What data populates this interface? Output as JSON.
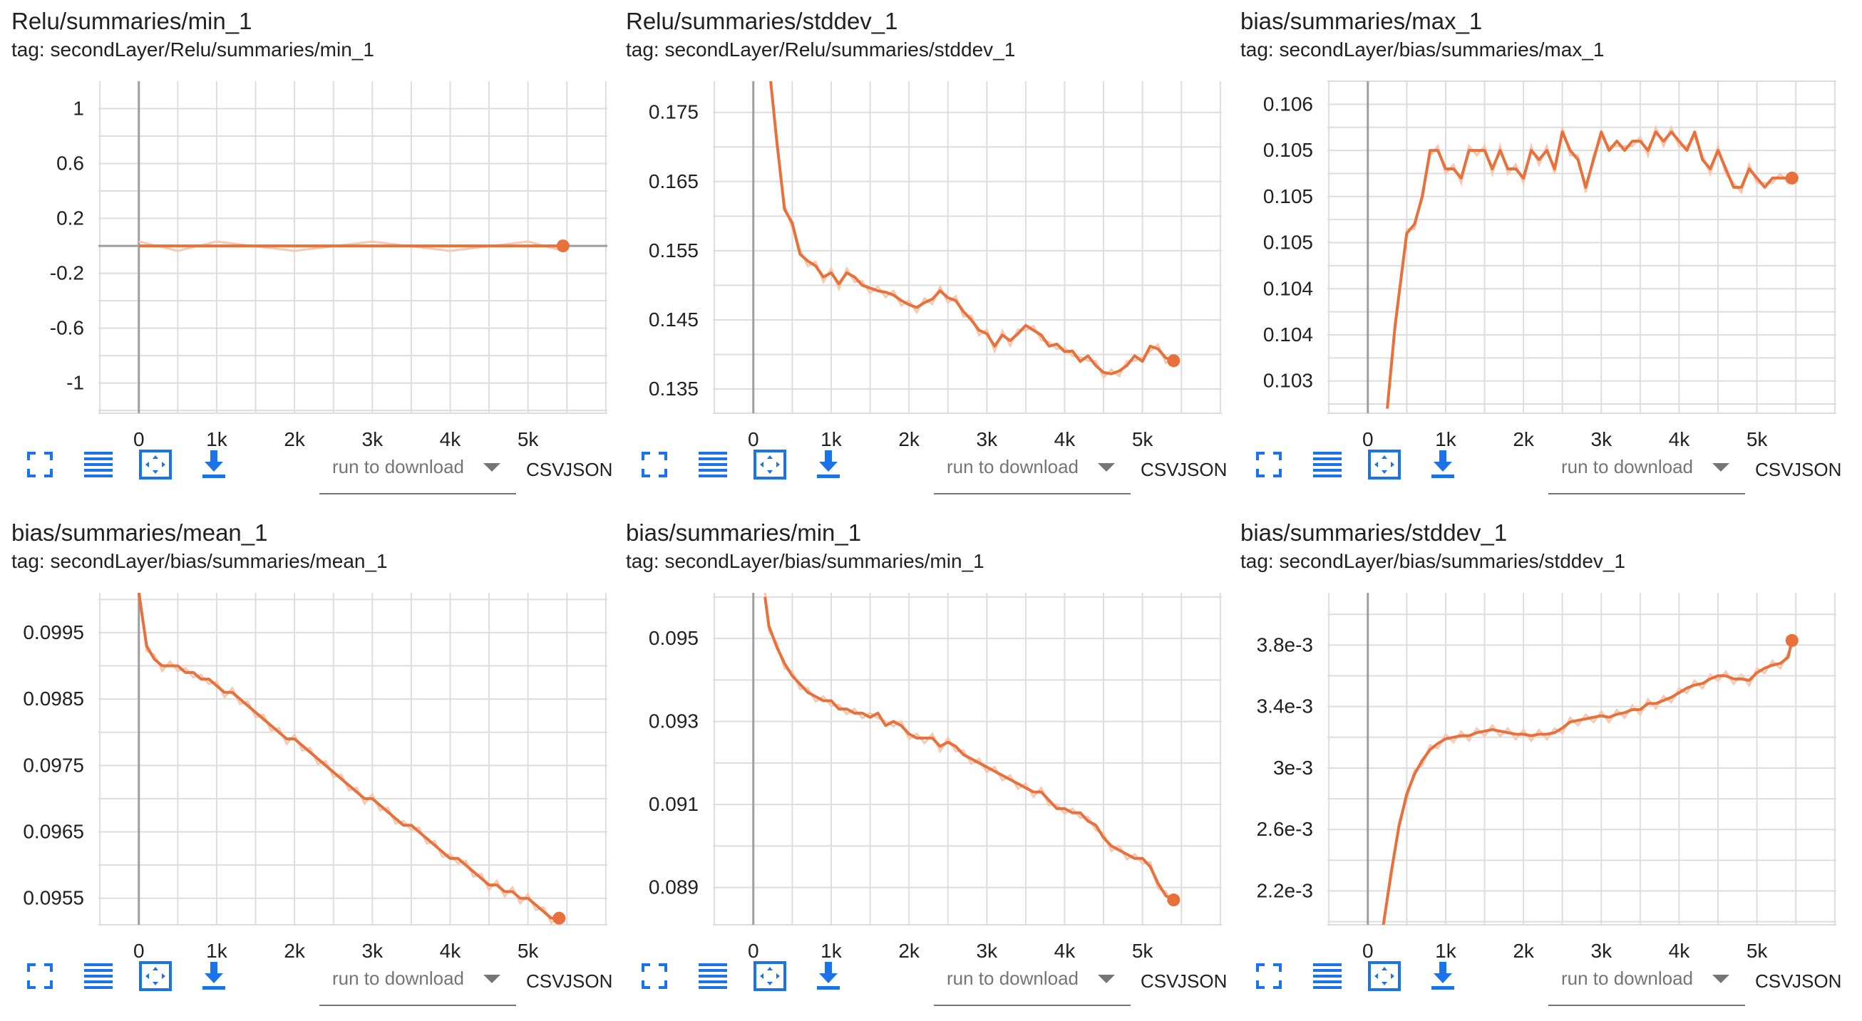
{
  "colors": {
    "accent": "#e8703a",
    "accent_light": "#f7c9b3",
    "grid": "#dddddd",
    "axis": "#9e9e9e",
    "icon_blue": "#1a73e8"
  },
  "toolbar": {
    "run_select_placeholder": "run to download",
    "csv_label": "CSV",
    "json_label": "JSON",
    "icons": [
      "fullscreen-icon",
      "toggle-log-scale-icon",
      "fit-domain-icon",
      "download-icon"
    ]
  },
  "cards": [
    {
      "title": "Relu/summaries/min_1",
      "tag": "tag: secondLayer/Relu/summaries/min_1",
      "chart_data": {
        "type": "line",
        "x_ticks": [
          "0",
          "1k",
          "2k",
          "3k",
          "4k",
          "5k"
        ],
        "x_tick_values": [
          0,
          1000,
          2000,
          3000,
          4000,
          5000
        ],
        "y_ticks": [
          "1",
          "0.6",
          "0.2",
          "-0.2",
          "-0.6",
          "-1"
        ],
        "y_tick_values": [
          1,
          0.6,
          0.2,
          -0.2,
          -0.6,
          -1
        ],
        "xlim": [
          -520,
          6020
        ],
        "ylim": [
          -1.22,
          1.2
        ],
        "grid": true,
        "series": [
          {
            "x": [
              0,
              500,
              1000,
              2000,
              3000,
              4000,
              5000,
              5450
            ],
            "y": [
              0,
              0,
              0,
              0,
              0,
              0,
              0,
              0
            ]
          }
        ]
      }
    },
    {
      "title": "Relu/summaries/stddev_1",
      "tag": "tag: secondLayer/Relu/summaries/stddev_1",
      "chart_data": {
        "type": "line",
        "x_ticks": [
          "0",
          "1k",
          "2k",
          "3k",
          "4k",
          "5k"
        ],
        "x_tick_values": [
          0,
          1000,
          2000,
          3000,
          4000,
          5000
        ],
        "y_ticks": [
          "0.175",
          "0.165",
          "0.155",
          "0.145",
          "0.135"
        ],
        "y_tick_values": [
          0.175,
          0.165,
          0.155,
          0.145,
          0.135
        ],
        "xlim": [
          -520,
          6020
        ],
        "ylim": [
          0.1315,
          0.1795
        ],
        "grid": true,
        "series": [
          {
            "x": [
              200,
              300,
              400,
              500,
              600,
              700,
              800,
              900,
              1000,
              1100,
              1200,
              1300,
              1400,
              1500,
              1600,
              1700,
              1800,
              1900,
              2000,
              2100,
              2200,
              2300,
              2400,
              2500,
              2600,
              2700,
              2800,
              2900,
              3000,
              3100,
              3200,
              3300,
              3400,
              3500,
              3600,
              3700,
              3800,
              3900,
              4000,
              4100,
              4200,
              4300,
              4400,
              4500,
              4600,
              4700,
              4800,
              4900,
              5000,
              5100,
              5200,
              5300,
              5400
            ],
            "y": [
              0.182,
              0.171,
              0.161,
              0.159,
              0.1545,
              0.1535,
              0.1528,
              0.1512,
              0.1518,
              0.1502,
              0.1518,
              0.1512,
              0.15,
              0.1496,
              0.1492,
              0.149,
              0.1486,
              0.1478,
              0.1472,
              0.1468,
              0.1475,
              0.148,
              0.1492,
              0.1482,
              0.1478,
              0.1462,
              0.145,
              0.1435,
              0.143,
              0.1412,
              0.1428,
              0.142,
              0.143,
              0.1442,
              0.1435,
              0.1428,
              0.1412,
              0.1415,
              0.1404,
              0.1405,
              0.139,
              0.1398,
              0.1384,
              0.1374,
              0.1372,
              0.1376,
              0.1384,
              0.1398,
              0.139,
              0.1412,
              0.1408,
              0.1395,
              0.1391
            ]
          }
        ]
      }
    },
    {
      "title": "bias/summaries/max_1",
      "tag": "tag: secondLayer/bias/summaries/max_1",
      "chart_data": {
        "type": "line",
        "x_ticks": [
          "0",
          "1k",
          "2k",
          "3k",
          "4k",
          "5k"
        ],
        "x_tick_values": [
          0,
          1000,
          2000,
          3000,
          4000,
          5000
        ],
        "y_ticks": [
          "0.106",
          "0.105",
          "0.105",
          "0.105",
          "0.104",
          "0.104",
          "0.103"
        ],
        "y_tick_values": [
          0.106,
          0.1055,
          0.105,
          0.1045,
          0.104,
          0.1035,
          0.103
        ],
        "xlim": [
          -520,
          6020
        ],
        "ylim": [
          0.10265,
          0.10625
        ],
        "grid": true,
        "series": [
          {
            "x": [
              250,
              350,
              500,
              600,
              700,
              800,
              900,
              1000,
              1100,
              1200,
              1300,
              1400,
              1500,
              1600,
              1700,
              1800,
              1900,
              2000,
              2100,
              2200,
              2300,
              2400,
              2500,
              2600,
              2700,
              2800,
              2900,
              3000,
              3100,
              3200,
              3300,
              3400,
              3500,
              3600,
              3700,
              3800,
              3900,
              4000,
              4100,
              4200,
              4300,
              4400,
              4500,
              4600,
              4700,
              4800,
              4900,
              5000,
              5100,
              5200,
              5300,
              5400,
              5450
            ],
            "y": [
              0.1027,
              0.1036,
              0.1046,
              0.1047,
              0.105,
              0.1055,
              0.1055,
              0.1053,
              0.1053,
              0.1052,
              0.1055,
              0.1055,
              0.1055,
              0.1053,
              0.1055,
              0.1053,
              0.1053,
              0.1052,
              0.1055,
              0.1054,
              0.1055,
              0.1053,
              0.1057,
              0.1055,
              0.1054,
              0.1051,
              0.1054,
              0.1057,
              0.1055,
              0.1056,
              0.1055,
              0.1056,
              0.1056,
              0.1055,
              0.1057,
              0.1056,
              0.1057,
              0.1056,
              0.1055,
              0.1057,
              0.1054,
              0.1053,
              0.1055,
              0.1053,
              0.1051,
              0.1051,
              0.1053,
              0.1052,
              0.1051,
              0.1052,
              0.1052,
              0.1052,
              0.1052
            ]
          }
        ]
      }
    },
    {
      "title": "bias/summaries/mean_1",
      "tag": "tag: secondLayer/bias/summaries/mean_1",
      "chart_data": {
        "type": "line",
        "x_ticks": [
          "0",
          "1k",
          "2k",
          "3k",
          "4k",
          "5k"
        ],
        "x_tick_values": [
          0,
          1000,
          2000,
          3000,
          4000,
          5000
        ],
        "y_ticks": [
          "0.0995",
          "0.0985",
          "0.0975",
          "0.0965",
          "0.0955"
        ],
        "y_tick_values": [
          0.0995,
          0.0985,
          0.0975,
          0.0965,
          0.0955
        ],
        "xlim": [
          -520,
          6020
        ],
        "ylim": [
          0.0951,
          0.1001
        ],
        "grid": true,
        "series": [
          {
            "x": [
              0,
              100,
              200,
              300,
              400,
              500,
              600,
              700,
              800,
              900,
              1000,
              1100,
              1200,
              1300,
              1400,
              1500,
              1600,
              1700,
              1800,
              1900,
              2000,
              2100,
              2200,
              2300,
              2400,
              2500,
              2600,
              2700,
              2800,
              2900,
              3000,
              3100,
              3200,
              3300,
              3400,
              3500,
              3600,
              3700,
              3800,
              3900,
              4000,
              4100,
              4200,
              4300,
              4400,
              4500,
              4600,
              4700,
              4800,
              4900,
              5000,
              5100,
              5200,
              5300,
              5400
            ],
            "y": [
              0.1001,
              0.0993,
              0.0991,
              0.099,
              0.099,
              0.099,
              0.0989,
              0.0989,
              0.0988,
              0.0988,
              0.0987,
              0.0986,
              0.0986,
              0.0985,
              0.0984,
              0.0983,
              0.0982,
              0.0981,
              0.098,
              0.0979,
              0.0979,
              0.0978,
              0.0977,
              0.0976,
              0.0975,
              0.0974,
              0.0973,
              0.0972,
              0.0971,
              0.097,
              0.097,
              0.0969,
              0.0968,
              0.0967,
              0.0966,
              0.0966,
              0.0965,
              0.0964,
              0.0963,
              0.0962,
              0.0961,
              0.0961,
              0.096,
              0.0959,
              0.0958,
              0.0957,
              0.0957,
              0.0956,
              0.0956,
              0.0955,
              0.0955,
              0.0954,
              0.0953,
              0.0952,
              0.0952
            ]
          }
        ]
      }
    },
    {
      "title": "bias/summaries/min_1",
      "tag": "tag: secondLayer/bias/summaries/min_1",
      "chart_data": {
        "type": "line",
        "x_ticks": [
          "0",
          "1k",
          "2k",
          "3k",
          "4k",
          "5k"
        ],
        "x_tick_values": [
          0,
          1000,
          2000,
          3000,
          4000,
          5000
        ],
        "y_ticks": [
          "0.095",
          "0.093",
          "0.091",
          "0.089"
        ],
        "y_tick_values": [
          0.095,
          0.093,
          0.091,
          0.089
        ],
        "xlim": [
          -520,
          6020
        ],
        "ylim": [
          0.0881,
          0.0961
        ],
        "grid": true,
        "series": [
          {
            "x": [
              150,
              200,
              300,
              400,
              500,
              600,
              700,
              800,
              900,
              1000,
              1100,
              1200,
              1300,
              1400,
              1500,
              1600,
              1700,
              1800,
              1900,
              2000,
              2100,
              2200,
              2300,
              2400,
              2500,
              2600,
              2700,
              2800,
              2900,
              3000,
              3100,
              3200,
              3300,
              3400,
              3500,
              3600,
              3700,
              3800,
              3900,
              4000,
              4100,
              4200,
              4300,
              4400,
              4500,
              4600,
              4700,
              4800,
              4900,
              5000,
              5100,
              5200,
              5300,
              5400
            ],
            "y": [
              0.096,
              0.0953,
              0.0948,
              0.0944,
              0.0941,
              0.0939,
              0.0937,
              0.0936,
              0.0935,
              0.0935,
              0.0933,
              0.0933,
              0.0932,
              0.0932,
              0.0931,
              0.0932,
              0.0929,
              0.093,
              0.0929,
              0.0927,
              0.0926,
              0.0926,
              0.0926,
              0.0924,
              0.0925,
              0.0924,
              0.0922,
              0.0921,
              0.092,
              0.0919,
              0.0918,
              0.0917,
              0.0916,
              0.0915,
              0.0914,
              0.0913,
              0.0913,
              0.0911,
              0.0909,
              0.0909,
              0.0908,
              0.0908,
              0.0906,
              0.0905,
              0.0902,
              0.09,
              0.0899,
              0.0898,
              0.0897,
              0.0897,
              0.0895,
              0.0891,
              0.0888,
              0.0887
            ]
          }
        ]
      }
    },
    {
      "title": "bias/summaries/stddev_1",
      "tag": "tag: secondLayer/bias/summaries/stddev_1",
      "chart_data": {
        "type": "line",
        "x_ticks": [
          "0",
          "1k",
          "2k",
          "3k",
          "4k",
          "5k"
        ],
        "x_tick_values": [
          0,
          1000,
          2000,
          3000,
          4000,
          5000
        ],
        "y_ticks": [
          "3.8e-3",
          "3.4e-3",
          "3e-3",
          "2.6e-3",
          "2.2e-3"
        ],
        "y_tick_values": [
          0.0038,
          0.0034,
          0.003,
          0.0026,
          0.0022
        ],
        "xlim": [
          -520,
          6020
        ],
        "ylim": [
          0.00198,
          0.00414
        ],
        "grid": true,
        "series": [
          {
            "x": [
              200,
              300,
              400,
              500,
              600,
              700,
              800,
              900,
              1000,
              1100,
              1200,
              1300,
              1400,
              1500,
              1600,
              1700,
              1800,
              1900,
              2000,
              2100,
              2200,
              2300,
              2400,
              2500,
              2600,
              2700,
              2800,
              2900,
              3000,
              3100,
              3200,
              3300,
              3400,
              3500,
              3600,
              3700,
              3800,
              3900,
              4000,
              4100,
              4200,
              4300,
              4400,
              4500,
              4600,
              4700,
              4800,
              4900,
              5000,
              5100,
              5200,
              5300,
              5400,
              5450
            ],
            "y": [
              0.00198,
              0.00232,
              0.00262,
              0.00283,
              0.00296,
              0.00305,
              0.00312,
              0.00316,
              0.00319,
              0.0032,
              0.00321,
              0.00321,
              0.00323,
              0.00324,
              0.00325,
              0.00324,
              0.00323,
              0.00322,
              0.00322,
              0.00321,
              0.00322,
              0.00322,
              0.00323,
              0.00326,
              0.0033,
              0.00331,
              0.00332,
              0.00333,
              0.00334,
              0.00333,
              0.00335,
              0.00336,
              0.00338,
              0.00338,
              0.00342,
              0.00342,
              0.00344,
              0.00346,
              0.00349,
              0.00352,
              0.00354,
              0.00355,
              0.00358,
              0.0036,
              0.0036,
              0.00358,
              0.00358,
              0.00357,
              0.00362,
              0.00365,
              0.00367,
              0.00368,
              0.00372,
              0.00383
            ]
          }
        ]
      }
    }
  ]
}
